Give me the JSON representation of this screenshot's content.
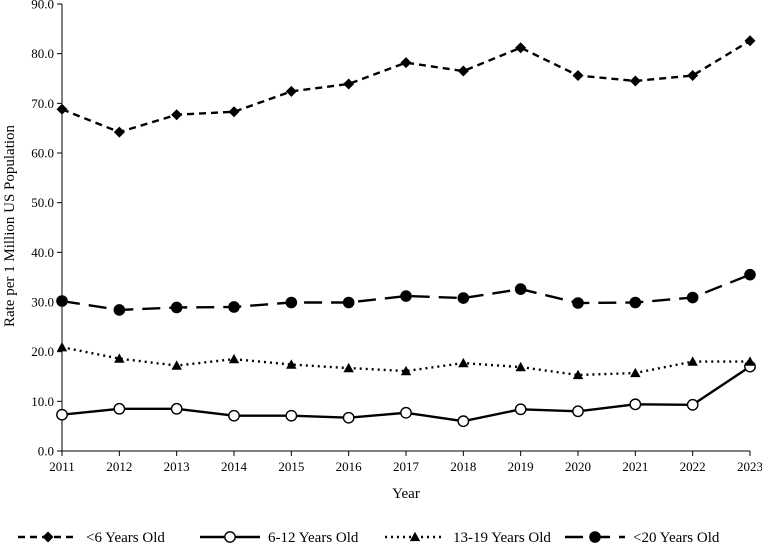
{
  "chart_data": {
    "type": "line",
    "title": "",
    "xlabel": "Year",
    "ylabel": "Rate per 1 Million US Population",
    "ylim": [
      0,
      90
    ],
    "yticks": [
      "0.0",
      "10.0",
      "20.0",
      "30.0",
      "40.0",
      "50.0",
      "60.0",
      "70.0",
      "80.0",
      "90.0"
    ],
    "categories": [
      "2011",
      "2012",
      "2013",
      "2014",
      "2015",
      "2016",
      "2017",
      "2018",
      "2019",
      "2020",
      "2021",
      "2022",
      "2023"
    ],
    "legend_position": "bottom",
    "grid": false,
    "series": [
      {
        "name": "<6 Years Old",
        "line_style": "short-dash",
        "marker": "diamond",
        "values": [
          68.8,
          64.2,
          67.7,
          68.3,
          72.4,
          73.9,
          78.2,
          76.5,
          81.2,
          75.6,
          74.5,
          75.6,
          82.6
        ]
      },
      {
        "name": "6-12 Years Old",
        "line_style": "solid",
        "marker": "open-circle",
        "values": [
          7.3,
          8.5,
          8.5,
          7.1,
          7.1,
          6.7,
          7.7,
          6.0,
          8.4,
          8.0,
          9.4,
          9.3,
          17.0
        ]
      },
      {
        "name": "13-19 Years Old",
        "line_style": "dotted",
        "marker": "triangle",
        "values": [
          20.9,
          18.6,
          17.2,
          18.5,
          17.4,
          16.7,
          16.1,
          17.7,
          16.9,
          15.3,
          15.7,
          18.0,
          18.0
        ]
      },
      {
        "name": "<20 Years Old",
        "line_style": "long-dash",
        "marker": "filled-circle",
        "values": [
          30.2,
          28.4,
          28.9,
          29.0,
          29.9,
          29.9,
          31.2,
          30.8,
          32.6,
          29.8,
          29.9,
          30.9,
          35.5
        ]
      }
    ]
  }
}
